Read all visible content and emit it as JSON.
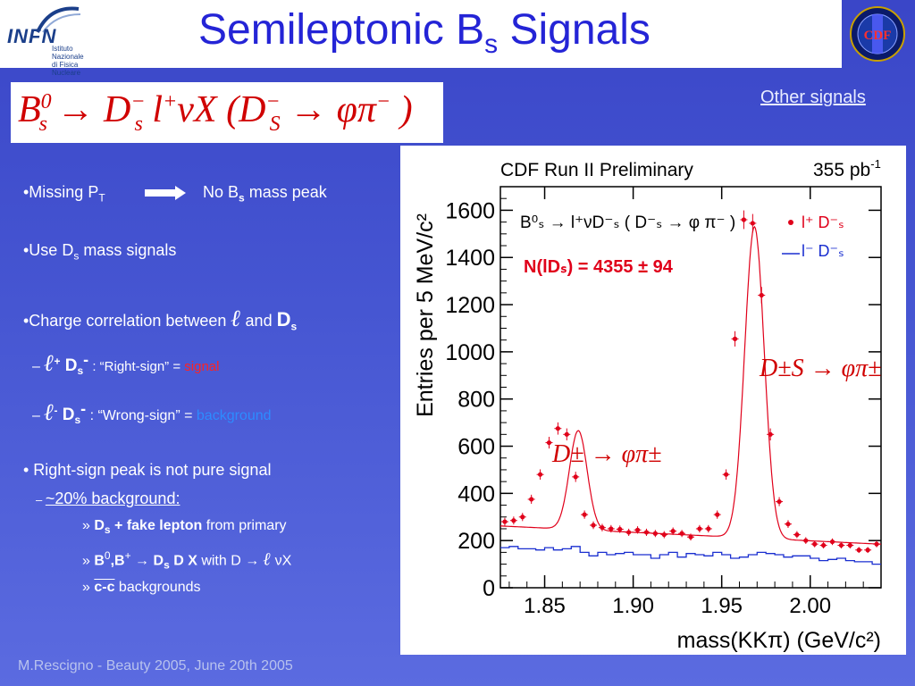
{
  "header": {
    "title_main": "Semileptonic B",
    "title_sub": "s",
    "title_end": " Signals",
    "infn_logo_text": "INFN",
    "infn_logo_line1": "Istituto Nazionale",
    "infn_logo_line2": "di Fisica Nucleare",
    "cdf_logo_text": "CDF"
  },
  "formula": {
    "b": "B",
    "b_sup": "0",
    "b_sub": "s",
    "arrow": " → ",
    "d": "D",
    "d_sup": "−",
    "d_sub": "s",
    "l": " l",
    "l_sup": "+",
    "nu": "νX (",
    "d2": "D",
    "d2_sup": "−",
    "d2_sub": "S",
    "arrow2": " → ",
    "phipi": "φπ",
    "phipi_sup": "−",
    "close": " )"
  },
  "link": {
    "other_signals": "Other signals"
  },
  "bullets": {
    "b1_start": "•Missing P",
    "b1_sub": "T",
    "b1_result": "No B",
    "b1_result_sub": "s",
    "b1_result_end": " mass peak",
    "b2_start": "•Use D",
    "b2_sub": "s",
    "b2_end": " mass signals",
    "b3_start": "•Charge correlation between ",
    "b3_l": "ℓ",
    "b3_mid": " and ",
    "b3_d": "D",
    "b3_dsub": "s",
    "b4_dash": "– ",
    "b4_l": "ℓ",
    "b4_lsup": "+",
    "b4_d": " D",
    "b4_dsub": "s",
    "b4_dsup": "-",
    "b4_text": "  :  “Right-sign” = ",
    "b4_word": "signal",
    "b5_dash": "– ",
    "b5_l": "ℓ",
    "b5_lsup": "-",
    "b5_d": " D",
    "b5_dsub": "s",
    "b5_dsup": "-",
    "b5_text": " :  “Wrong-sign” = ",
    "b5_word": "background",
    "b6": "• Right-sign peak is not pure signal",
    "b7_dash": "– ",
    "b7_text": "~20% background:",
    "b8_mark": "» ",
    "b8_d": "D",
    "b8_dsub": "s",
    "b8_bold": " + fake lepton",
    "b8_end": " from primary",
    "b9_mark": "» ",
    "b9_b": "B",
    "b9_bsup": "0",
    "b9_b2": ",B",
    "b9_b2sup": "+",
    "b9_arrow": " → ",
    "b9_d": "D",
    "b9_dsub": "s",
    "b9_dd": " D X",
    "b9_with": " with D → ",
    "b9_l": "ℓ",
    "b9_end": " νX",
    "b10_mark": "» ",
    "b10_cc": "c-c",
    "b10_end": " backgrounds"
  },
  "footer": "M.Rescigno - Beauty 2005,  June 20th 2005",
  "chart_data": {
    "type": "scatter",
    "title": "CDF Run II Preliminary",
    "luminosity": "355 pb",
    "luminosity_sup": "-1",
    "xlabel": "mass(KKπ) (GeV/c²)",
    "ylabel": "Entries per 5 MeV/c²",
    "xlim": [
      1.825,
      2.04
    ],
    "ylim": [
      0,
      1700
    ],
    "xticks": [
      1.85,
      1.9,
      1.95,
      2.0
    ],
    "xtick_labels": [
      "1.85",
      "1.90",
      "1.95",
      "2.00"
    ],
    "yticks": [
      0,
      200,
      400,
      600,
      800,
      1000,
      1200,
      1400,
      1600
    ],
    "ytick_labels": [
      "0",
      "200",
      "400",
      "600",
      "800",
      "1000",
      "1200",
      "1400",
      "1600"
    ],
    "decay_label": "B⁰ₛ → l⁺νD⁻ₛ ( D⁻ₛ → φ π⁻ )",
    "yield_label": "N(lDₛ) = 4355 ± 94",
    "legend": {
      "position": "top-right",
      "entries": [
        "l⁺ D⁻ₛ",
        "l⁻ D⁻ₛ"
      ]
    },
    "annotations": [
      "D±S → φπ±",
      "D± → φπ±"
    ],
    "colors": {
      "signal": "#e0001a",
      "background": "#1a2fd0",
      "text": "#000000"
    },
    "series": [
      {
        "name": "l⁺ D⁻ₛ",
        "style": "points",
        "x": [
          1.8275,
          1.8325,
          1.8375,
          1.8425,
          1.8475,
          1.8525,
          1.8575,
          1.8625,
          1.8675,
          1.8725,
          1.8775,
          1.8825,
          1.8875,
          1.8925,
          1.8975,
          1.9025,
          1.9075,
          1.9125,
          1.9175,
          1.9225,
          1.9275,
          1.9325,
          1.9375,
          1.9425,
          1.9475,
          1.9525,
          1.9575,
          1.9625,
          1.9675,
          1.9725,
          1.9775,
          1.9825,
          1.9875,
          1.9925,
          1.9975,
          2.0025,
          2.0075,
          2.0125,
          2.0175,
          2.0225,
          2.0275,
          2.0325,
          2.0375
        ],
        "y": [
          280,
          285,
          300,
          375,
          480,
          615,
          675,
          650,
          470,
          310,
          265,
          255,
          250,
          248,
          235,
          245,
          235,
          230,
          225,
          240,
          230,
          215,
          250,
          250,
          310,
          480,
          1055,
          1560,
          1545,
          1240,
          650,
          365,
          270,
          225,
          200,
          185,
          180,
          195,
          180,
          180,
          160,
          160,
          185
        ]
      },
      {
        "name": "l⁺ D⁻ₛ fit",
        "style": "curve",
        "fit": {
          "baseline_a": 262,
          "baseline_slope": -360,
          "x0": 1.825,
          "peaks": [
            {
              "amp": 420,
              "mean": 1.869,
              "sigma": 0.005
            },
            {
              "amp": 1320,
              "mean": 1.9685,
              "sigma": 0.0055
            }
          ]
        }
      },
      {
        "name": "l⁻ D⁻ₛ",
        "style": "step",
        "x": [
          1.8275,
          1.8325,
          1.8375,
          1.8425,
          1.8475,
          1.8525,
          1.8575,
          1.8625,
          1.8675,
          1.8725,
          1.8775,
          1.8825,
          1.8875,
          1.8925,
          1.8975,
          1.9025,
          1.9075,
          1.9125,
          1.9175,
          1.9225,
          1.9275,
          1.9325,
          1.9375,
          1.9425,
          1.9475,
          1.9525,
          1.9575,
          1.9625,
          1.9675,
          1.9725,
          1.9775,
          1.9825,
          1.9875,
          1.9925,
          1.9975,
          2.0025,
          2.0075,
          2.0125,
          2.0175,
          2.0225,
          2.0275,
          2.0325,
          2.0375
        ],
        "y": [
          170,
          175,
          165,
          165,
          160,
          170,
          160,
          165,
          175,
          150,
          135,
          150,
          140,
          145,
          150,
          140,
          140,
          125,
          140,
          150,
          130,
          145,
          140,
          135,
          150,
          140,
          125,
          130,
          140,
          150,
          145,
          140,
          130,
          135,
          135,
          125,
          115,
          120,
          125,
          115,
          110,
          110,
          100
        ]
      }
    ]
  }
}
